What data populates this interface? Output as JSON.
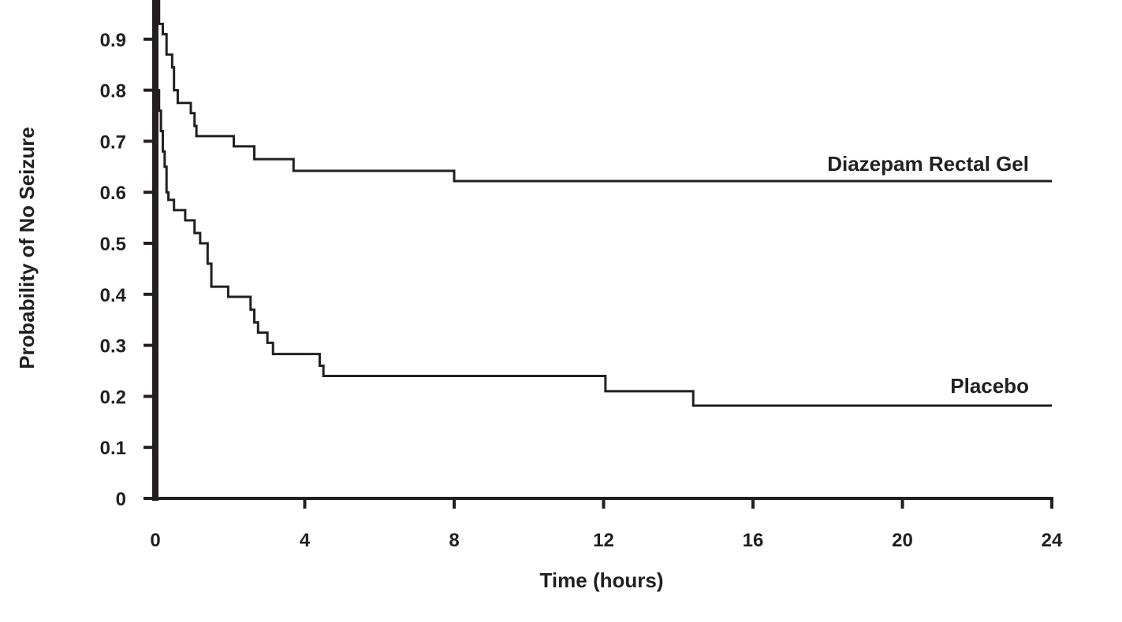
{
  "chart_data": {
    "type": "line",
    "step": true,
    "xlabel": "Time (hours)",
    "ylabel": "Probability of No Seizure",
    "xlim": [
      0,
      24
    ],
    "ylim": [
      0,
      1
    ],
    "x_ticks": [
      "0",
      "4",
      "8",
      "12",
      "16",
      "20",
      "24"
    ],
    "y_ticks": [
      "0",
      "0.1",
      "0.2",
      "0.3",
      "0.4",
      "0.5",
      "0.6",
      "0.7",
      "0.8",
      "0.9"
    ],
    "grid": false,
    "line_color": "#231f20",
    "series": [
      {
        "name": "Diazepam Rectal Gel",
        "points": [
          [
            0,
            1.0
          ],
          [
            0.1,
            0.93
          ],
          [
            0.2,
            0.91
          ],
          [
            0.3,
            0.87
          ],
          [
            0.45,
            0.845
          ],
          [
            0.5,
            0.8
          ],
          [
            0.6,
            0.775
          ],
          [
            0.95,
            0.755
          ],
          [
            1.05,
            0.73
          ],
          [
            1.1,
            0.71
          ],
          [
            2.1,
            0.69
          ],
          [
            2.65,
            0.665
          ],
          [
            3.7,
            0.642
          ],
          [
            8.0,
            0.622
          ],
          [
            24,
            0.622
          ]
        ]
      },
      {
        "name": "Placebo",
        "points": [
          [
            0,
            1.0
          ],
          [
            0.05,
            0.8
          ],
          [
            0.1,
            0.76
          ],
          [
            0.15,
            0.72
          ],
          [
            0.2,
            0.68
          ],
          [
            0.25,
            0.65
          ],
          [
            0.3,
            0.6
          ],
          [
            0.35,
            0.585
          ],
          [
            0.5,
            0.565
          ],
          [
            0.8,
            0.545
          ],
          [
            1.05,
            0.52
          ],
          [
            1.2,
            0.5
          ],
          [
            1.4,
            0.46
          ],
          [
            1.5,
            0.415
          ],
          [
            1.95,
            0.395
          ],
          [
            2.55,
            0.37
          ],
          [
            2.65,
            0.345
          ],
          [
            2.75,
            0.325
          ],
          [
            3.0,
            0.305
          ],
          [
            3.15,
            0.283
          ],
          [
            4.4,
            0.26
          ],
          [
            4.5,
            0.24
          ],
          [
            12.05,
            0.21
          ],
          [
            14.4,
            0.182
          ],
          [
            24,
            0.182
          ]
        ]
      }
    ]
  }
}
